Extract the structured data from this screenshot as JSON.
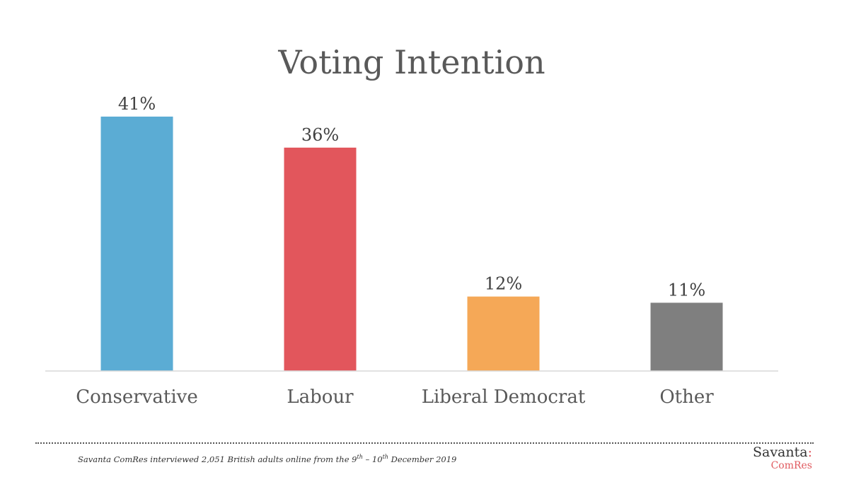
{
  "chart_data": {
    "type": "bar",
    "title": "Voting Intention",
    "categories": [
      "Conservative",
      "Labour",
      "Liberal Democrat",
      "Other"
    ],
    "values": [
      41,
      36,
      12,
      11
    ],
    "value_labels": [
      "41%",
      "36%",
      "12%",
      "11%"
    ],
    "colors": [
      "#5bacd4",
      "#e2565c",
      "#f5a857",
      "#7f7f7f"
    ],
    "ylim": [
      0,
      41
    ],
    "grid": false,
    "legend": "none"
  },
  "footnote": {
    "prefix": "Savanta ComRes interviewed 2,051 British adults online from the 9",
    "sup1": "th",
    "middle": " – 10",
    "sup2": "th",
    "suffix": " December 2019"
  },
  "logo": {
    "top": "Savanta",
    "colon": ":",
    "bottom": "ComRes"
  }
}
